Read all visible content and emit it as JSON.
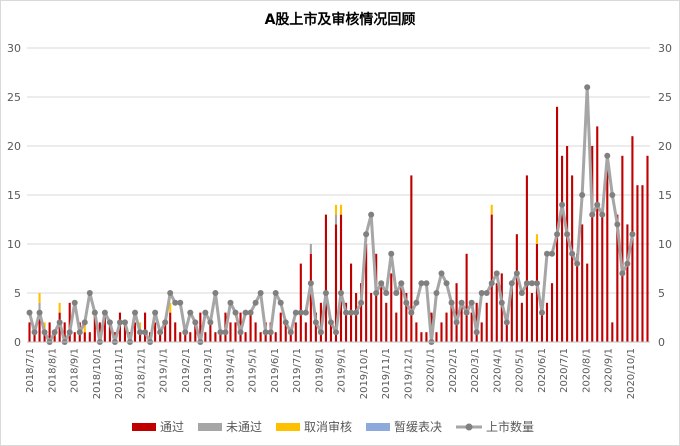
{
  "chart_data": {
    "type": "bar",
    "title": "A股上市及审核情况回顾",
    "ylim": [
      0,
      30
    ],
    "y_ticks": [
      0,
      5,
      10,
      15,
      20,
      25,
      30
    ],
    "y2lim": [
      0,
      30
    ],
    "y2_ticks": [
      0,
      5,
      10,
      15,
      20,
      25,
      30
    ],
    "x_tick_labels": [
      "2018/7/1",
      "2018/8/1",
      "2018/9/1",
      "2018/10/1",
      "2018/11/1",
      "2018/12/1",
      "2019/1/1",
      "2019/2/1",
      "2019/3/1",
      "2019/4/1",
      "2019/5/1",
      "2019/6/1",
      "2019/7/1",
      "2019/8/1",
      "2019/9/1",
      "2019/10/1",
      "2019/11/1",
      "2019/12/1",
      "2020/1/1",
      "2020/2/1",
      "2020/3/1",
      "2020/4/1",
      "2020/5/1",
      "2020/6/1",
      "2020/7/1",
      "2020/8/1",
      "2020/9/1",
      "2020/10/1"
    ],
    "grid": "horizontal",
    "legend_position": "bottom",
    "series": [
      {
        "name": "通过",
        "kind": "bar",
        "color": "#C00000",
        "values": [
          2,
          1,
          3,
          1,
          2,
          1,
          3,
          2,
          4,
          1,
          2,
          1,
          1,
          3,
          2,
          3,
          2,
          1,
          3,
          2,
          1,
          2,
          1,
          3,
          1,
          2,
          1,
          2,
          3,
          2,
          1,
          1,
          1,
          2,
          3,
          1,
          2,
          1,
          1,
          3,
          2,
          2,
          3,
          1,
          3,
          2,
          1,
          2,
          2,
          1,
          3,
          2,
          1,
          2,
          8,
          2,
          9,
          3,
          4,
          13,
          2,
          12,
          13,
          4,
          8,
          5,
          6,
          10,
          5,
          9,
          6,
          4,
          7,
          3,
          6,
          5,
          17,
          2,
          1,
          1,
          3,
          1,
          2,
          3,
          4,
          6,
          4,
          9,
          3,
          4,
          2,
          4,
          13,
          6,
          7,
          2,
          6,
          11,
          4,
          17,
          5,
          10,
          3,
          4,
          6,
          24,
          19,
          20,
          17,
          9,
          12,
          8,
          20,
          22,
          13,
          18,
          2,
          13,
          19,
          12,
          21,
          16,
          16,
          19
        ]
      },
      {
        "name": "未通过",
        "kind": "bar",
        "color": "#A6A6A6",
        "values": [
          0,
          0,
          1,
          0,
          0,
          0,
          0,
          0,
          0,
          0,
          0,
          0,
          0,
          0,
          0,
          0,
          0,
          0,
          0,
          0,
          0,
          0,
          0,
          0,
          0,
          0,
          0,
          0,
          0,
          0,
          0,
          0,
          0,
          0,
          0,
          0,
          0,
          0,
          0,
          0,
          0,
          0,
          0,
          0,
          0,
          0,
          0,
          0,
          0,
          0,
          0,
          0,
          0,
          0,
          0,
          0,
          1,
          0,
          0,
          0,
          0,
          1,
          0,
          0,
          0,
          0,
          0,
          0,
          0,
          0,
          0,
          0,
          0,
          0,
          0,
          0,
          0,
          0,
          0,
          0,
          0,
          0,
          0,
          0,
          0,
          0,
          0,
          0,
          0,
          0,
          0,
          0,
          0,
          0,
          0,
          0,
          0,
          0,
          0,
          0,
          0,
          0,
          0,
          0,
          0,
          0,
          0,
          0,
          0,
          0,
          0,
          0,
          0,
          0,
          0,
          0,
          0,
          0,
          0,
          0,
          0,
          0,
          0,
          0
        ]
      },
      {
        "name": "取消审核",
        "kind": "bar",
        "color": "#FFC000",
        "values": [
          0,
          0,
          1,
          1,
          0,
          0,
          1,
          0,
          0,
          0,
          0,
          1,
          0,
          0,
          0,
          0,
          0,
          0,
          0,
          0,
          0,
          0,
          1,
          0,
          0,
          0,
          0,
          0,
          1,
          0,
          0,
          0,
          0,
          0,
          0,
          0,
          0,
          0,
          0,
          0,
          0,
          0,
          0,
          0,
          0,
          0,
          0,
          0,
          0,
          0,
          0,
          0,
          0,
          0,
          0,
          0,
          0,
          0,
          0,
          0,
          0,
          1,
          1,
          0,
          0,
          0,
          0,
          0,
          0,
          0,
          0,
          0,
          0,
          0,
          0,
          0,
          0,
          0,
          0,
          0,
          0,
          0,
          0,
          0,
          0,
          0,
          0,
          0,
          0,
          0,
          0,
          0,
          1,
          0,
          0,
          0,
          0,
          0,
          0,
          0,
          0,
          1,
          0,
          0,
          0,
          0,
          0,
          0,
          0,
          0,
          0,
          0,
          0,
          0,
          0,
          0,
          0,
          0,
          0,
          0,
          0,
          0,
          0,
          0
        ]
      },
      {
        "name": "暂缓表决",
        "kind": "bar",
        "color": "#8EA9DB",
        "values": [
          0,
          0,
          0,
          0,
          0,
          0,
          0,
          0,
          0,
          0,
          0,
          0,
          0,
          0,
          0,
          0,
          0,
          0,
          0,
          0,
          0,
          0,
          0,
          0,
          0,
          0,
          0,
          0,
          0,
          0,
          0,
          0,
          0,
          0,
          0,
          0,
          0,
          0,
          0,
          0,
          0,
          0,
          0,
          0,
          0,
          0,
          0,
          0,
          0,
          0,
          0,
          0,
          0,
          0,
          0,
          0,
          0,
          0,
          0,
          0,
          0,
          0,
          0,
          0,
          0,
          0,
          0,
          0,
          0,
          0,
          0,
          0,
          0,
          0,
          0,
          0,
          0,
          0,
          0,
          0,
          0,
          0,
          0,
          0,
          0,
          0,
          0,
          0,
          0,
          0,
          0,
          0,
          0,
          0,
          0,
          0,
          0,
          0,
          0,
          0,
          0,
          0,
          0,
          0,
          0,
          0,
          0,
          0,
          0,
          0,
          0,
          0,
          0,
          0,
          0,
          0,
          0,
          0,
          0,
          0,
          0,
          0,
          0,
          0
        ]
      },
      {
        "name": "上市数量",
        "kind": "line",
        "color": "#808080",
        "values": [
          3,
          1,
          3,
          1,
          0,
          1,
          2,
          0,
          1,
          4,
          1,
          2,
          5,
          3,
          0,
          3,
          2,
          0,
          2,
          2,
          0,
          3,
          1,
          1,
          0,
          3,
          1,
          2,
          5,
          4,
          4,
          1,
          3,
          2,
          0,
          3,
          2,
          5,
          1,
          1,
          4,
          3,
          1,
          3,
          3,
          4,
          5,
          1,
          1,
          5,
          4,
          2,
          1,
          3,
          3,
          3,
          6,
          2,
          1,
          5,
          2,
          1,
          5,
          3,
          3,
          3,
          4,
          11,
          13,
          5,
          6,
          5,
          9,
          5,
          6,
          4,
          3,
          4,
          6,
          6,
          0,
          5,
          7,
          6,
          4,
          2,
          4,
          3,
          4,
          1,
          5,
          5,
          6,
          7,
          4,
          2,
          6,
          7,
          5,
          6,
          6,
          6,
          3,
          9,
          9,
          11,
          14,
          11,
          9,
          8,
          15,
          26,
          13,
          14,
          13,
          19,
          15,
          12,
          7,
          8,
          11,
          null,
          null,
          null
        ]
      }
    ]
  }
}
